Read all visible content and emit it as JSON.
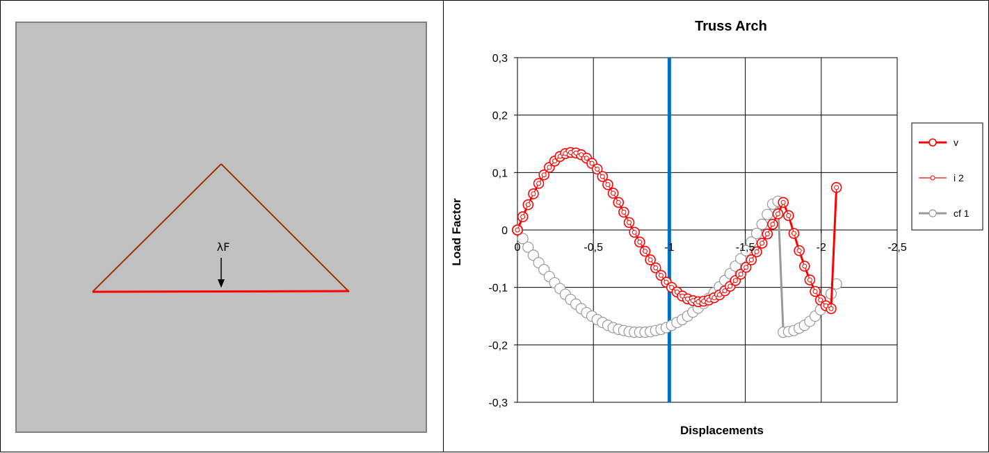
{
  "structure_view": {
    "load_label": "λF",
    "colors": {
      "background": "#c0c0c0",
      "arch_members": "#993300",
      "bottom_chord": "#ff0000",
      "load_arrow": "#000000"
    }
  },
  "chart_data": {
    "type": "scatter",
    "title": "Truss Arch",
    "xlabel": "Displacements",
    "ylabel": "Load Factor",
    "xlim": [
      0,
      -2.5
    ],
    "ylim": [
      -0.3,
      0.3
    ],
    "x_reversed": true,
    "x_ticks": [
      0,
      -0.5,
      -1,
      -1.5,
      -2,
      -2.5
    ],
    "x_tick_labels": [
      "0",
      "-0,5",
      "-1",
      "-1,5",
      "-2",
      "-2,5"
    ],
    "y_ticks": [
      -0.3,
      -0.2,
      -0.1,
      0,
      0.1,
      0.2,
      0.3
    ],
    "y_tick_labels": [
      "-0,3",
      "-0,2",
      "-0,1",
      "0",
      "0,1",
      "0,2",
      "0,3"
    ],
    "grid": true,
    "legend_position": "right",
    "vertical_marker": {
      "x": -1,
      "color": "#0070c0"
    },
    "series": [
      {
        "name": "v",
        "color": "#ff0000",
        "marker": "large-circle",
        "x": [
          0,
          -0.035,
          -0.07,
          -0.105,
          -0.14,
          -0.175,
          -0.21,
          -0.245,
          -0.28,
          -0.315,
          -0.35,
          -0.385,
          -0.42,
          -0.455,
          -0.49,
          -0.525,
          -0.56,
          -0.595,
          -0.63,
          -0.665,
          -0.7,
          -0.735,
          -0.77,
          -0.805,
          -0.84,
          -0.875,
          -0.91,
          -0.945,
          -0.98,
          -1.015,
          -1.05,
          -1.085,
          -1.12,
          -1.155,
          -1.19,
          -1.225,
          -1.26,
          -1.295,
          -1.33,
          -1.365,
          -1.4,
          -1.435,
          -1.47,
          -1.505,
          -1.54,
          -1.575,
          -1.61,
          -1.645,
          -1.68,
          -1.715,
          -1.75,
          -1.785,
          -1.82,
          -1.855,
          -1.89,
          -1.925,
          -1.96,
          -1.995,
          -2.03,
          -2.065,
          -2.1
        ],
        "y": [
          0,
          0.023,
          0.044,
          0.063,
          0.081,
          0.096,
          0.109,
          0.12,
          0.128,
          0.133,
          0.135,
          0.134,
          0.131,
          0.125,
          0.116,
          0.106,
          0.093,
          0.079,
          0.064,
          0.048,
          0.031,
          0.013,
          -0.004,
          -0.021,
          -0.037,
          -0.052,
          -0.066,
          -0.079,
          -0.091,
          -0.1,
          -0.108,
          -0.115,
          -0.12,
          -0.123,
          -0.125,
          -0.124,
          -0.122,
          -0.118,
          -0.113,
          -0.106,
          -0.098,
          -0.088,
          -0.077,
          -0.065,
          -0.052,
          -0.038,
          -0.023,
          -0.007,
          0.01,
          0.028,
          0.048,
          0.025,
          -0.006,
          -0.036,
          -0.063,
          -0.087,
          -0.107,
          -0.122,
          -0.132,
          -0.137,
          0.074
        ]
      },
      {
        "name": "i 2",
        "color": "#ff0000",
        "marker": "small-circle",
        "x": [
          0,
          -0.035,
          -0.07,
          -0.105,
          -0.14,
          -0.175,
          -0.21,
          -0.245,
          -0.28,
          -0.315,
          -0.35,
          -0.385,
          -0.42,
          -0.455,
          -0.49,
          -0.525,
          -0.56,
          -0.595,
          -0.63,
          -0.665,
          -0.7,
          -0.735,
          -0.77,
          -0.805,
          -0.84,
          -0.875,
          -0.91,
          -0.945,
          -0.98,
          -1.015,
          -1.05,
          -1.085,
          -1.12,
          -1.155,
          -1.19,
          -1.225,
          -1.26,
          -1.295,
          -1.33,
          -1.365,
          -1.4,
          -1.435,
          -1.47,
          -1.505,
          -1.54,
          -1.575,
          -1.61,
          -1.645,
          -1.68,
          -1.715,
          -1.75,
          -1.785,
          -1.82,
          -1.855,
          -1.89,
          -1.925,
          -1.96,
          -1.995,
          -2.03,
          -2.065,
          -2.1
        ],
        "y": [
          0,
          0.023,
          0.044,
          0.063,
          0.081,
          0.096,
          0.109,
          0.12,
          0.128,
          0.133,
          0.135,
          0.134,
          0.131,
          0.125,
          0.116,
          0.106,
          0.093,
          0.079,
          0.064,
          0.048,
          0.031,
          0.013,
          -0.004,
          -0.021,
          -0.037,
          -0.052,
          -0.066,
          -0.079,
          -0.091,
          -0.1,
          -0.108,
          -0.115,
          -0.12,
          -0.123,
          -0.125,
          -0.124,
          -0.122,
          -0.118,
          -0.113,
          -0.106,
          -0.098,
          -0.088,
          -0.077,
          -0.065,
          -0.052,
          -0.038,
          -0.023,
          -0.007,
          0.01,
          0.028,
          0.048,
          0.025,
          -0.006,
          -0.036,
          -0.063,
          -0.087,
          -0.107,
          -0.122,
          -0.132,
          -0.137,
          0.074
        ]
      },
      {
        "name": "cf 1",
        "color": "#999999",
        "marker": "large-white-circle",
        "x": [
          0,
          -0.035,
          -0.07,
          -0.105,
          -0.14,
          -0.175,
          -0.21,
          -0.245,
          -0.28,
          -0.315,
          -0.35,
          -0.385,
          -0.42,
          -0.455,
          -0.49,
          -0.525,
          -0.56,
          -0.595,
          -0.63,
          -0.665,
          -0.7,
          -0.735,
          -0.77,
          -0.805,
          -0.84,
          -0.875,
          -0.91,
          -0.945,
          -0.98,
          -1.015,
          -1.05,
          -1.085,
          -1.12,
          -1.155,
          -1.19,
          -1.225,
          -1.26,
          -1.295,
          -1.33,
          -1.365,
          -1.4,
          -1.435,
          -1.47,
          -1.505,
          -1.54,
          -1.575,
          -1.61,
          -1.645,
          -1.68,
          -1.715,
          -1.75,
          -1.785,
          -1.82,
          -1.855,
          -1.89,
          -1.925,
          -1.96,
          -1.995,
          -2.03,
          -2.065,
          -2.1
        ],
        "y": [
          0,
          -0.015,
          -0.03,
          -0.044,
          -0.057,
          -0.069,
          -0.081,
          -0.092,
          -0.102,
          -0.112,
          -0.121,
          -0.129,
          -0.137,
          -0.144,
          -0.15,
          -0.156,
          -0.161,
          -0.166,
          -0.17,
          -0.173,
          -0.175,
          -0.177,
          -0.178,
          -0.178,
          -0.178,
          -0.177,
          -0.175,
          -0.173,
          -0.17,
          -0.166,
          -0.161,
          -0.156,
          -0.15,
          -0.143,
          -0.136,
          -0.128,
          -0.119,
          -0.109,
          -0.099,
          -0.088,
          -0.076,
          -0.063,
          -0.05,
          -0.036,
          -0.021,
          -0.006,
          0.01,
          0.027,
          0.045,
          0.05,
          -0.178,
          -0.177,
          -0.175,
          -0.171,
          -0.166,
          -0.159,
          -0.15,
          -0.139,
          -0.126,
          -0.111,
          -0.094
        ]
      }
    ]
  }
}
